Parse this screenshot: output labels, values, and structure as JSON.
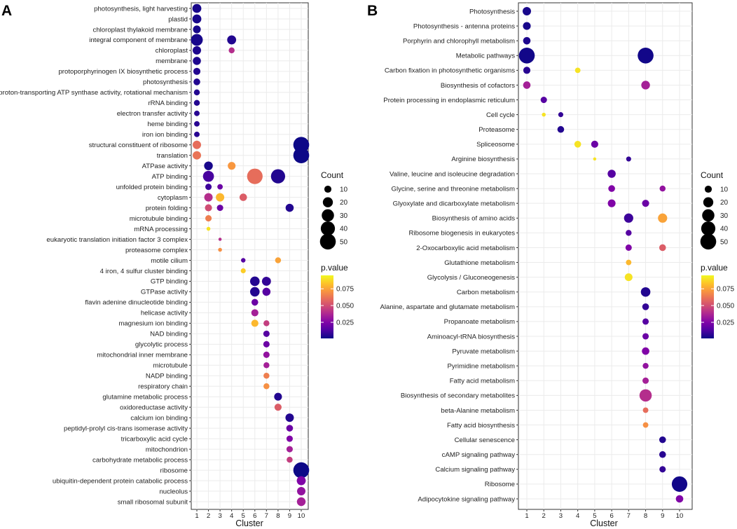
{
  "colors": {
    "low": "#0d0887",
    "mid": "#cc4778",
    "high": "#f0f921",
    "grid": "#ebebeb",
    "frame": "#333333"
  },
  "chart_data": [
    {
      "panel": "A",
      "type": "scatter",
      "xlabel": "Cluster",
      "x_ticks": [
        "1",
        "2",
        "3",
        "4",
        "5",
        "6",
        "7",
        "8",
        "9",
        "10"
      ],
      "terms": [
        "photosynthesis, light harvesting",
        "plastid",
        "chloroplast thylakoid membrane",
        "integral component of membrane",
        "chloroplast",
        "membrane",
        "protoporphyrinogen IX biosynthetic process",
        "photosynthesis",
        "proton-transporting ATP synthase activity, rotational mechanism",
        "rRNA binding",
        "electron transfer activity",
        "heme binding",
        "iron ion binding",
        "structural constituent of ribosome",
        "translation",
        "ATPase activity",
        "ATP binding",
        "unfolded protein binding",
        "cytoplasm",
        "protein folding",
        "microtubule binding",
        "mRNA processing",
        "eukaryotic translation initiation factor 3 complex",
        "proteasome complex",
        "motile cilium",
        "4 iron, 4 sulfur cluster binding",
        "GTP binding",
        "GTPase activity",
        "flavin adenine dinucleotide binding",
        "helicase activity",
        "magnesium ion binding",
        "NAD binding",
        "glycolytic process",
        "mitochondrial inner membrane",
        "microtubule",
        "NADP binding",
        "respiratory chain",
        "glutamine metabolic process",
        "oxidoreductase activity",
        "calcium ion binding",
        "peptidyl-prolyl cis-trans isomerase activity",
        "tricarboxylic acid cycle",
        "mitochondrion",
        "carbohydrate metabolic process",
        "ribosome",
        "ubiquitin-dependent protein catabolic process",
        "nucleolus",
        "small ribosomal subunit"
      ],
      "points": [
        {
          "term": 0,
          "cluster": 1,
          "count": 16,
          "p": 0.003
        },
        {
          "term": 1,
          "cluster": 1,
          "count": 16,
          "p": 0.003
        },
        {
          "term": 2,
          "cluster": 1,
          "count": 12,
          "p": 0.003
        },
        {
          "term": 3,
          "cluster": 1,
          "count": 28,
          "p": 0.003
        },
        {
          "term": 3,
          "cluster": 4,
          "count": 16,
          "p": 0.005
        },
        {
          "term": 4,
          "cluster": 1,
          "count": 14,
          "p": 0.004
        },
        {
          "term": 4,
          "cluster": 4,
          "count": 7,
          "p": 0.04
        },
        {
          "term": 5,
          "cluster": 1,
          "count": 13,
          "p": 0.004
        },
        {
          "term": 6,
          "cluster": 1,
          "count": 10,
          "p": 0.005
        },
        {
          "term": 7,
          "cluster": 1,
          "count": 9,
          "p": 0.005
        },
        {
          "term": 8,
          "cluster": 1,
          "count": 7,
          "p": 0.005
        },
        {
          "term": 9,
          "cluster": 1,
          "count": 7,
          "p": 0.005
        },
        {
          "term": 10,
          "cluster": 1,
          "count": 6,
          "p": 0.006
        },
        {
          "term": 11,
          "cluster": 1,
          "count": 6,
          "p": 0.006
        },
        {
          "term": 12,
          "cluster": 1,
          "count": 6,
          "p": 0.006
        },
        {
          "term": 13,
          "cluster": 1,
          "count": 14,
          "p": 0.06
        },
        {
          "term": 13,
          "cluster": 10,
          "count": 50,
          "p": 0.001
        },
        {
          "term": 14,
          "cluster": 1,
          "count": 14,
          "p": 0.062
        },
        {
          "term": 14,
          "cluster": 10,
          "count": 50,
          "p": 0.001
        },
        {
          "term": 15,
          "cluster": 2,
          "count": 15,
          "p": 0.003
        },
        {
          "term": 15,
          "cluster": 4,
          "count": 12,
          "p": 0.072
        },
        {
          "term": 16,
          "cluster": 2,
          "count": 24,
          "p": 0.012
        },
        {
          "term": 16,
          "cluster": 6,
          "count": 48,
          "p": 0.06
        },
        {
          "term": 16,
          "cluster": 8,
          "count": 40,
          "p": 0.005
        },
        {
          "term": 17,
          "cluster": 2,
          "count": 8,
          "p": 0.01
        },
        {
          "term": 17,
          "cluster": 3,
          "count": 6,
          "p": 0.02
        },
        {
          "term": 18,
          "cluster": 2,
          "count": 14,
          "p": 0.04
        },
        {
          "term": 18,
          "cluster": 3,
          "count": 14,
          "p": 0.08
        },
        {
          "term": 18,
          "cluster": 5,
          "count": 11,
          "p": 0.055
        },
        {
          "term": 19,
          "cluster": 2,
          "count": 10,
          "p": 0.05
        },
        {
          "term": 19,
          "cluster": 3,
          "count": 8,
          "p": 0.02
        },
        {
          "term": 19,
          "cluster": 9,
          "count": 13,
          "p": 0.005
        },
        {
          "term": 20,
          "cluster": 2,
          "count": 8,
          "p": 0.065
        },
        {
          "term": 21,
          "cluster": 2,
          "count": 3,
          "p": 0.09
        },
        {
          "term": 22,
          "cluster": 3,
          "count": 2,
          "p": 0.04
        },
        {
          "term": 23,
          "cluster": 3,
          "count": 3,
          "p": 0.07
        },
        {
          "term": 24,
          "cluster": 5,
          "count": 4,
          "p": 0.015
        },
        {
          "term": 24,
          "cluster": 8,
          "count": 7,
          "p": 0.075
        },
        {
          "term": 25,
          "cluster": 5,
          "count": 5,
          "p": 0.085
        },
        {
          "term": 26,
          "cluster": 6,
          "count": 18,
          "p": 0.005
        },
        {
          "term": 26,
          "cluster": 7,
          "count": 16,
          "p": 0.008
        },
        {
          "term": 27,
          "cluster": 6,
          "count": 18,
          "p": 0.005
        },
        {
          "term": 27,
          "cluster": 7,
          "count": 13,
          "p": 0.015
        },
        {
          "term": 28,
          "cluster": 6,
          "count": 9,
          "p": 0.02
        },
        {
          "term": 29,
          "cluster": 6,
          "count": 10,
          "p": 0.035
        },
        {
          "term": 30,
          "cluster": 6,
          "count": 10,
          "p": 0.08
        },
        {
          "term": 30,
          "cluster": 7,
          "count": 7,
          "p": 0.045
        },
        {
          "term": 31,
          "cluster": 7,
          "count": 8,
          "p": 0.015
        },
        {
          "term": 32,
          "cluster": 7,
          "count": 8,
          "p": 0.02
        },
        {
          "term": 33,
          "cluster": 7,
          "count": 8,
          "p": 0.03
        },
        {
          "term": 34,
          "cluster": 7,
          "count": 7,
          "p": 0.035
        },
        {
          "term": 35,
          "cluster": 7,
          "count": 7,
          "p": 0.065
        },
        {
          "term": 36,
          "cluster": 7,
          "count": 7,
          "p": 0.07
        },
        {
          "term": 37,
          "cluster": 8,
          "count": 12,
          "p": 0.005
        },
        {
          "term": 38,
          "cluster": 8,
          "count": 10,
          "p": 0.055
        },
        {
          "term": 39,
          "cluster": 9,
          "count": 14,
          "p": 0.005
        },
        {
          "term": 40,
          "cluster": 9,
          "count": 9,
          "p": 0.02
        },
        {
          "term": 41,
          "cluster": 9,
          "count": 8,
          "p": 0.025
        },
        {
          "term": 42,
          "cluster": 9,
          "count": 8,
          "p": 0.035
        },
        {
          "term": 43,
          "cluster": 9,
          "count": 7,
          "p": 0.045
        },
        {
          "term": 44,
          "cluster": 10,
          "count": 50,
          "p": 0.001
        },
        {
          "term": 45,
          "cluster": 10,
          "count": 16,
          "p": 0.025
        },
        {
          "term": 46,
          "cluster": 10,
          "count": 14,
          "p": 0.03
        },
        {
          "term": 47,
          "cluster": 10,
          "count": 15,
          "p": 0.035
        }
      ]
    },
    {
      "panel": "B",
      "type": "scatter",
      "xlabel": "Cluster",
      "x_ticks": [
        "1",
        "2",
        "3",
        "4",
        "5",
        "6",
        "7",
        "8",
        "9",
        "10"
      ],
      "terms": [
        "Photosynthesis",
        "Photosynthesis - antenna proteins",
        "Porphyrin and chlorophyll metabolism",
        "Metabolic pathways",
        "Carbon fixation in photosynthetic organisms",
        "Biosynthesis of cofactors",
        "Protein processing in endoplasmic reticulum",
        "Cell cycle",
        "Proteasome",
        "Spliceosome",
        "Arginine biosynthesis",
        "Valine, leucine and isoleucine degradation",
        "Glycine, serine and threonine metabolism",
        "Glyoxylate and dicarboxylate metabolism",
        "Biosynthesis of amino acids",
        "Ribosome biogenesis in eukaryotes",
        "2-Oxocarboxylic acid metabolism",
        "Glutathione metabolism",
        "Glycolysis / Gluconeogenesis",
        "Carbon metabolism",
        "Alanine, aspartate and glutamate metabolism",
        "Propanoate metabolism",
        "Aminoacyl-tRNA biosynthesis",
        "Pyruvate metabolism",
        "Pyrimidine metabolism",
        "Fatty acid metabolism",
        "Biosynthesis of secondary metabolites",
        "beta-Alanine metabolism",
        "Fatty acid biosynthesis",
        "Cellular senescence",
        "cAMP signaling pathway",
        "Calcium signaling pathway",
        "Ribosome",
        "Adipocytokine signaling pathway"
      ],
      "points": [
        {
          "term": 0,
          "cluster": 1,
          "count": 14,
          "p": 0.003
        },
        {
          "term": 1,
          "cluster": 1,
          "count": 12,
          "p": 0.003
        },
        {
          "term": 2,
          "cluster": 1,
          "count": 11,
          "p": 0.004
        },
        {
          "term": 3,
          "cluster": 1,
          "count": 50,
          "p": 0.002
        },
        {
          "term": 3,
          "cluster": 8,
          "count": 50,
          "p": 0.002
        },
        {
          "term": 4,
          "cluster": 1,
          "count": 10,
          "p": 0.006
        },
        {
          "term": 4,
          "cluster": 4,
          "count": 6,
          "p": 0.09
        },
        {
          "term": 5,
          "cluster": 1,
          "count": 11,
          "p": 0.035
        },
        {
          "term": 5,
          "cluster": 8,
          "count": 15,
          "p": 0.035
        },
        {
          "term": 6,
          "cluster": 2,
          "count": 8,
          "p": 0.015
        },
        {
          "term": 7,
          "cluster": 2,
          "count": 3,
          "p": 0.09
        },
        {
          "term": 7,
          "cluster": 3,
          "count": 5,
          "p": 0.008
        },
        {
          "term": 8,
          "cluster": 3,
          "count": 9,
          "p": 0.005
        },
        {
          "term": 9,
          "cluster": 4,
          "count": 9,
          "p": 0.09
        },
        {
          "term": 9,
          "cluster": 5,
          "count": 10,
          "p": 0.02
        },
        {
          "term": 10,
          "cluster": 5,
          "count": 2,
          "p": 0.09
        },
        {
          "term": 10,
          "cluster": 7,
          "count": 5,
          "p": 0.008
        },
        {
          "term": 11,
          "cluster": 6,
          "count": 13,
          "p": 0.015
        },
        {
          "term": 12,
          "cluster": 6,
          "count": 9,
          "p": 0.025
        },
        {
          "term": 12,
          "cluster": 9,
          "count": 7,
          "p": 0.03
        },
        {
          "term": 13,
          "cluster": 6,
          "count": 12,
          "p": 0.025
        },
        {
          "term": 13,
          "cluster": 8,
          "count": 10,
          "p": 0.02
        },
        {
          "term": 14,
          "cluster": 7,
          "count": 17,
          "p": 0.01
        },
        {
          "term": 14,
          "cluster": 9,
          "count": 17,
          "p": 0.075
        },
        {
          "term": 15,
          "cluster": 7,
          "count": 7,
          "p": 0.015
        },
        {
          "term": 16,
          "cluster": 7,
          "count": 8,
          "p": 0.025
        },
        {
          "term": 16,
          "cluster": 9,
          "count": 9,
          "p": 0.055
        },
        {
          "term": 17,
          "cluster": 7,
          "count": 6,
          "p": 0.08
        },
        {
          "term": 18,
          "cluster": 7,
          "count": 12,
          "p": 0.09
        },
        {
          "term": 19,
          "cluster": 8,
          "count": 18,
          "p": 0.005
        },
        {
          "term": 20,
          "cluster": 8,
          "count": 9,
          "p": 0.008
        },
        {
          "term": 21,
          "cluster": 8,
          "count": 8,
          "p": 0.015
        },
        {
          "term": 22,
          "cluster": 8,
          "count": 8,
          "p": 0.02
        },
        {
          "term": 23,
          "cluster": 8,
          "count": 11,
          "p": 0.025
        },
        {
          "term": 24,
          "cluster": 8,
          "count": 7,
          "p": 0.03
        },
        {
          "term": 25,
          "cluster": 8,
          "count": 8,
          "p": 0.035
        },
        {
          "term": 26,
          "cluster": 8,
          "count": 30,
          "p": 0.04
        },
        {
          "term": 27,
          "cluster": 8,
          "count": 6,
          "p": 0.06
        },
        {
          "term": 28,
          "cluster": 8,
          "count": 6,
          "p": 0.07
        },
        {
          "term": 29,
          "cluster": 9,
          "count": 9,
          "p": 0.005
        },
        {
          "term": 30,
          "cluster": 9,
          "count": 9,
          "p": 0.006
        },
        {
          "term": 31,
          "cluster": 9,
          "count": 8,
          "p": 0.008
        },
        {
          "term": 32,
          "cluster": 10,
          "count": 48,
          "p": 0.002
        },
        {
          "term": 33,
          "cluster": 10,
          "count": 11,
          "p": 0.025
        }
      ]
    }
  ],
  "legend": {
    "count_title": "Count",
    "count_values": [
      10,
      20,
      30,
      40,
      50
    ],
    "pvalue_title": "p.value",
    "pvalue_ticks": [
      0.025,
      0.05,
      0.075
    ],
    "pvalue_tick_labels": [
      "0.025",
      "0.050",
      "0.075"
    ],
    "pvalue_range": [
      0.001,
      0.095
    ]
  }
}
